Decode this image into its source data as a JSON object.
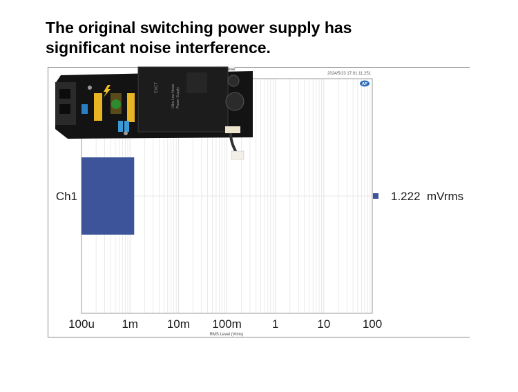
{
  "slide": {
    "title_line1": "The original switching power supply has",
    "title_line2": "significant noise interference."
  },
  "instrument": {
    "timestamp": "2024/5/23 17:01:11.251",
    "header_tab": "RMS Level",
    "logo_text": "AP"
  },
  "photo": {
    "board_text_1": "Ultra Low Noise",
    "board_text_2": "Power Supply",
    "brand_text": "EXCT"
  },
  "chart_data": {
    "type": "bar",
    "orientation": "horizontal",
    "xscale": "log",
    "categories": [
      "Ch1"
    ],
    "values": [
      0.001222
    ],
    "value_labels": [
      "1.222  mVrms"
    ],
    "xlim": [
      0.0001,
      100
    ],
    "xticks": [
      0.0001,
      0.001,
      0.01,
      0.1,
      1,
      10,
      100
    ],
    "xtick_labels": [
      "100u",
      "1m",
      "10m",
      "100m",
      "1",
      "10",
      "100"
    ],
    "xlabel": "RMS Level (Vrms)",
    "grid": true,
    "colors": {
      "bar": "#3d539a",
      "marker": "#3d539a",
      "grid": "#e2e2e2",
      "axis": "#9a9a9a"
    }
  }
}
